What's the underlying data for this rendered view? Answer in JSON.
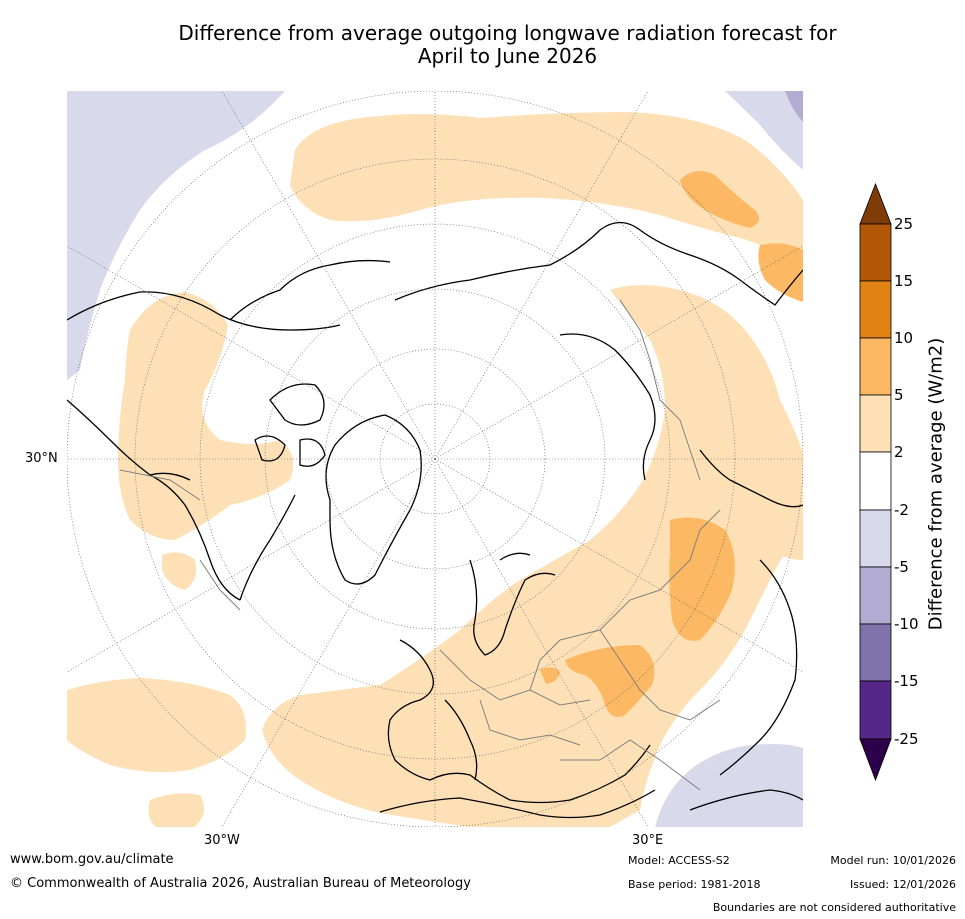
{
  "title_line1": "Difference from average outgoing longwave radiation forecast for",
  "title_line2": "April to June 2026",
  "map": {
    "lat_label_left": "30°N",
    "lon_label_left": "30°W",
    "lon_label_right": "30°E"
  },
  "colorbar": {
    "title": "Difference from average (W/m2)",
    "ticks": [
      "25",
      "15",
      "10",
      "5",
      "2",
      "-2",
      "-5",
      "-10",
      "-15",
      "-25"
    ],
    "colors": {
      "extend_high": "#7f3b08",
      "c15_25": "#b35806",
      "c10_15": "#e08214",
      "c5_10": "#fdb863",
      "c2_5": "#fee0b6",
      "neutral": "#ffffff",
      "cm2_m5": "#d8daeb",
      "cm5_m10": "#b2abd2",
      "cm10_m15": "#8073ac",
      "cm15_m25": "#542788",
      "extend_low": "#2d004b"
    }
  },
  "footer": {
    "website": "www.bom.gov.au/climate",
    "copyright": "© Commonwealth of Australia 2026, Australian Bureau of Meteorology",
    "model": "Model: ACCESS-S2",
    "base_period": "Base period: 1981-2018",
    "model_run": "Model run: 10/01/2026",
    "issued": "Issued: 12/01/2026",
    "disclaimer": "Boundaries are not considered authoritative"
  }
}
